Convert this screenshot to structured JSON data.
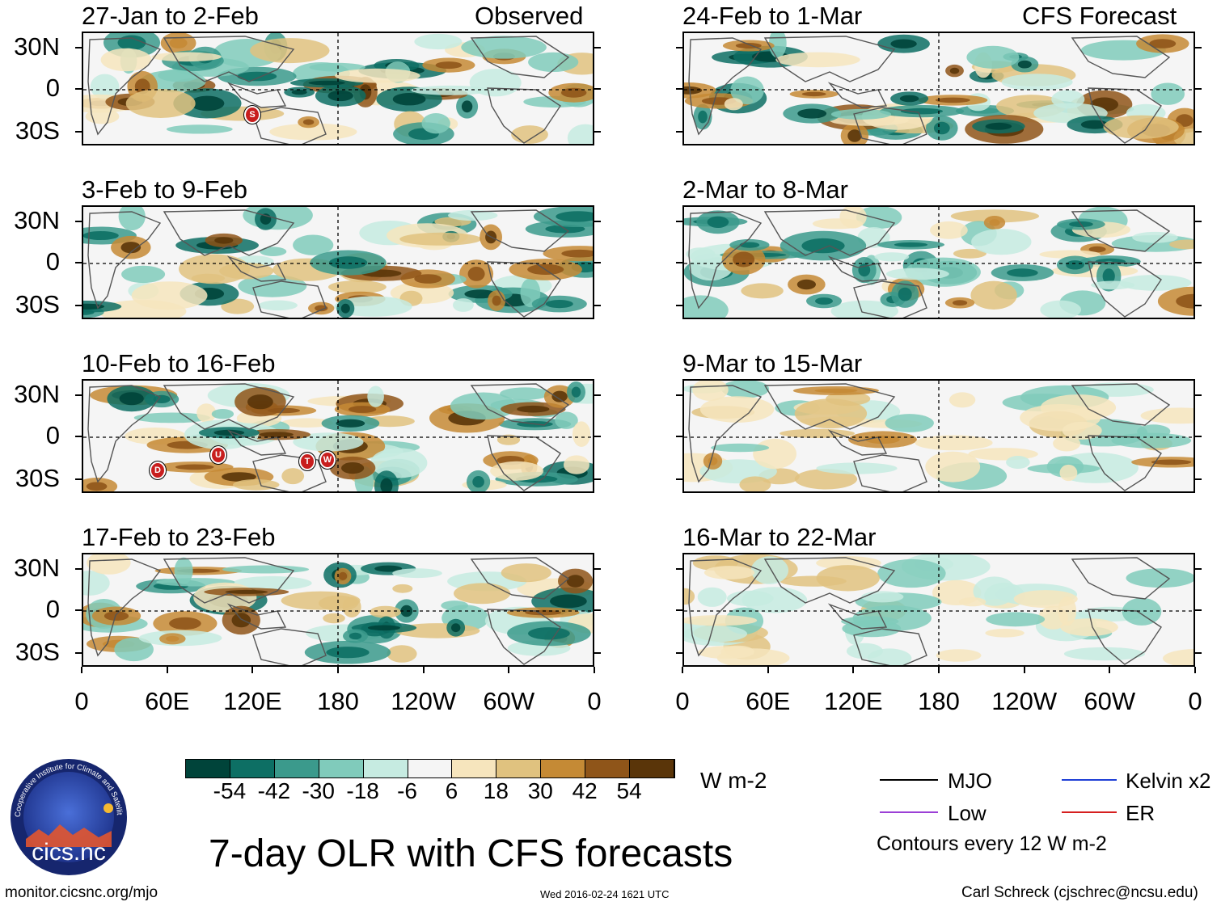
{
  "chart_data": {
    "type": "heatmap",
    "title": "7-day OLR with CFS forecasts",
    "units": "W m-2",
    "x_ticks": [
      "0",
      "60E",
      "120E",
      "180",
      "120W",
      "60W",
      "0"
    ],
    "y_ticks": [
      "30N",
      "0",
      "30S"
    ],
    "colorbar": {
      "levels": [
        "-54",
        "-42",
        "-30",
        "-18",
        "-6",
        "6",
        "18",
        "30",
        "42",
        "54"
      ],
      "colors": [
        "#00443a",
        "#0d6f64",
        "#3b9a8c",
        "#80cbbb",
        "#c6ebe1",
        "#f5f5f5",
        "#f6e5bd",
        "#e0c27f",
        "#c58a35",
        "#8f5519",
        "#5a3509"
      ]
    },
    "observed_header": "Observed",
    "forecast_header": "CFS Forecast",
    "panels_observed": [
      {
        "period": "27-Jan to 2-Feb",
        "markers": [
          "S"
        ]
      },
      {
        "period": "3-Feb to 9-Feb",
        "markers": []
      },
      {
        "period": "10-Feb to 16-Feb",
        "markers": [
          "D",
          "U",
          "T",
          "W"
        ]
      },
      {
        "period": "17-Feb to 23-Feb",
        "markers": []
      }
    ],
    "panels_forecast": [
      {
        "period": "24-Feb to 1-Mar"
      },
      {
        "period": "2-Mar to 8-Mar"
      },
      {
        "period": "9-Mar to 15-Mar"
      },
      {
        "period": "16-Mar to 22-Mar"
      }
    ],
    "legend": {
      "items": [
        {
          "label": "MJO",
          "color": "#000000"
        },
        {
          "label": "Kelvin x2",
          "color": "#1f3fd6"
        },
        {
          "label": "Low",
          "color": "#9b3fd6"
        },
        {
          "label": "ER",
          "color": "#d61f1f"
        }
      ],
      "contours": "Contours every 12 W m-2"
    }
  },
  "footer": {
    "logo_text": "cics.nc",
    "logo_ring_text": "Cooperative Institute for Climate and Satellites",
    "url": "monitor.cicsnc.org/mjo",
    "timestamp": "Wed 2016-02-24 1621 UTC",
    "credit": "Carl Schreck (cjschrec@ncsu.edu)"
  }
}
